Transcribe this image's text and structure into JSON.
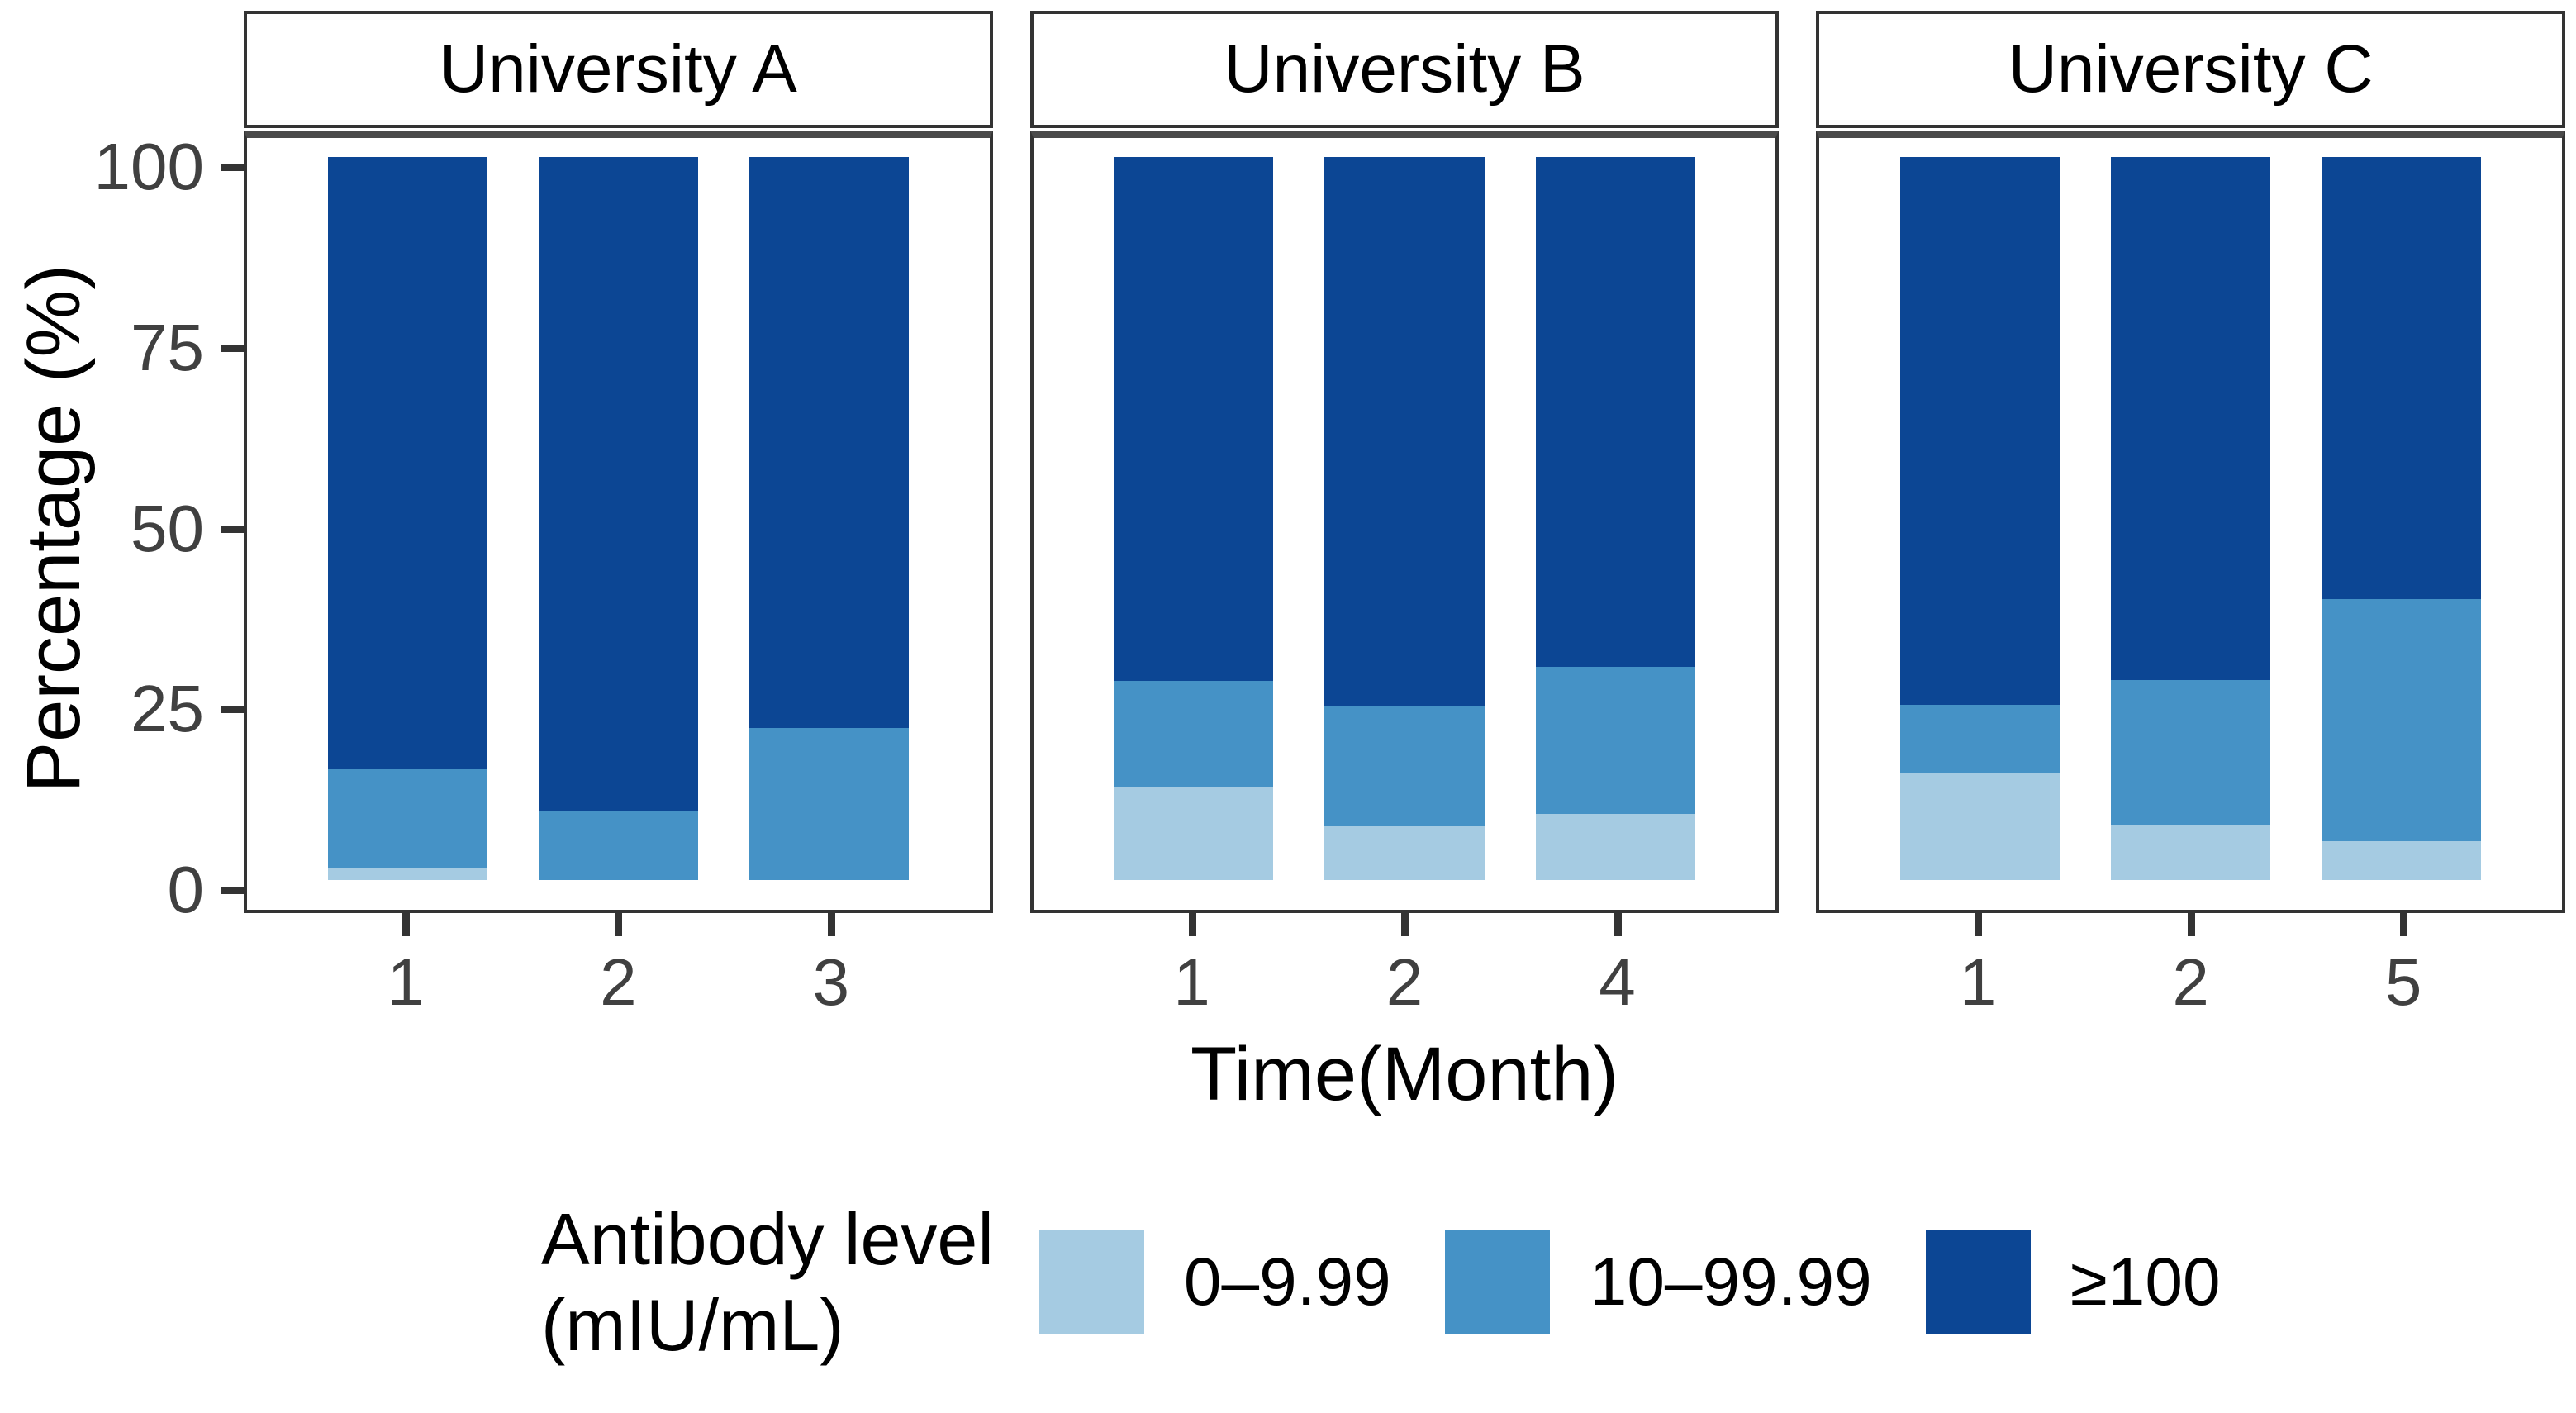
{
  "figure": {
    "y_axis_title": "Percentage (%)",
    "x_axis_title": "Time(Month)",
    "legend": {
      "title_line1": "Antibody level",
      "title_line2": "(mIU/mL)",
      "items": [
        {
          "label": "0–9.99",
          "color": "#A5CBE2"
        },
        {
          "label": "10–99.99",
          "color": "#4592C6"
        },
        {
          "label": "≥100",
          "color": "#0C4694"
        }
      ]
    },
    "colors": {
      "light_blue": "#A5CBE2",
      "medium_blue": "#4592C6",
      "dark_blue": "#0C4694",
      "panel_border": "#333333",
      "strip_underline": "#4A4A4A",
      "axis_text": "#404040"
    }
  },
  "chart_data": {
    "type": "bar",
    "stacked": true,
    "orientation": "vertical",
    "ylabel": "Percentage (%)",
    "xlabel": "Time(Month)",
    "ylim": [
      0,
      100
    ],
    "y_ticks": [
      0,
      25,
      50,
      75,
      100
    ],
    "grid": false,
    "legend_position": "bottom",
    "series_names": [
      "0–9.99",
      "10–99.99",
      "≥100"
    ],
    "panels": [
      {
        "title": "University A",
        "categories": [
          "1",
          "2",
          "3"
        ],
        "bars": [
          {
            "month": "1",
            "values": [
              1.7,
              13.6,
              84.7
            ]
          },
          {
            "month": "2",
            "values": [
              0.0,
              9.5,
              90.5
            ]
          },
          {
            "month": "3",
            "values": [
              0.0,
              21.0,
              79.0
            ]
          }
        ]
      },
      {
        "title": "University B",
        "categories": [
          "1",
          "2",
          "4"
        ],
        "bars": [
          {
            "month": "1",
            "values": [
              12.8,
              14.8,
              72.4
            ]
          },
          {
            "month": "2",
            "values": [
              7.4,
              16.7,
              75.9
            ]
          },
          {
            "month": "4",
            "values": [
              9.1,
              20.4,
              70.5
            ]
          }
        ]
      },
      {
        "title": "University C",
        "categories": [
          "1",
          "2",
          "5"
        ],
        "bars": [
          {
            "month": "1",
            "values": [
              14.8,
              9.4,
              75.8
            ]
          },
          {
            "month": "2",
            "values": [
              7.5,
              20.2,
              72.3
            ]
          },
          {
            "month": "5",
            "values": [
              5.4,
              33.5,
              61.1
            ]
          }
        ]
      }
    ]
  }
}
